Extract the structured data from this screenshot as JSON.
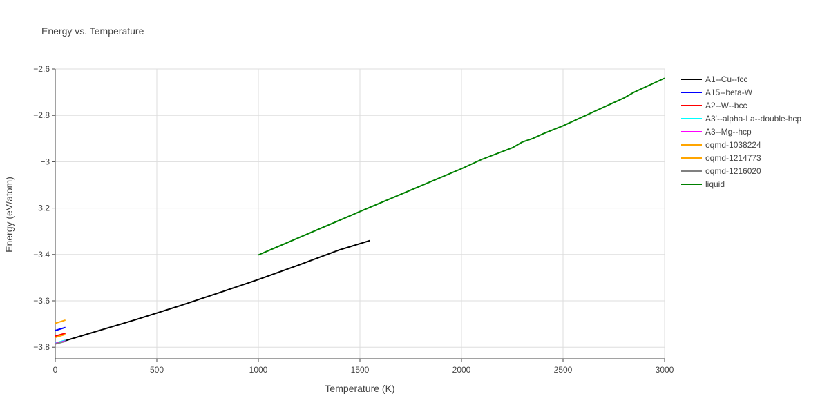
{
  "chart_data": {
    "type": "line",
    "title": "Energy vs. Temperature",
    "xlabel": "Temperature (K)",
    "ylabel": "Energy (eV/atom)",
    "xlim": [
      0,
      3000
    ],
    "ylim": [
      -3.85,
      -2.6
    ],
    "xticks": [
      0,
      500,
      1000,
      1500,
      2000,
      2500,
      3000
    ],
    "yticks": [
      -3.8,
      -3.6,
      -3.4,
      -3.2,
      -3.0,
      -2.8,
      -2.6
    ],
    "ytick_labels": [
      "−3.8",
      "−3.6",
      "−3.4",
      "−3.2",
      "−3",
      "−2.8",
      "−2.6"
    ],
    "grid": true,
    "legend_position": "right",
    "series": [
      {
        "name": "A1--Cu--fcc",
        "color": "#000000",
        "x": [
          0,
          200,
          400,
          600,
          800,
          1000,
          1200,
          1400,
          1550
        ],
        "y": [
          -3.785,
          -3.732,
          -3.68,
          -3.625,
          -3.567,
          -3.508,
          -3.445,
          -3.38,
          -3.34
        ]
      },
      {
        "name": "A15--beta-W",
        "color": "#0000ff",
        "x": [
          0,
          50
        ],
        "y": [
          -3.728,
          -3.715
        ]
      },
      {
        "name": "A2--W--bcc",
        "color": "#ff0000",
        "x": [
          0,
          50
        ],
        "y": [
          -3.752,
          -3.74
        ]
      },
      {
        "name": "A3'--alpha-La--double-hcp",
        "color": "#00ffff",
        "x": [
          0,
          50
        ],
        "y": [
          -3.782,
          -3.77
        ]
      },
      {
        "name": "A3--Mg--hcp",
        "color": "#ff00ff",
        "x": [
          0,
          50
        ],
        "y": [
          -3.784,
          -3.773
        ]
      },
      {
        "name": "oqmd-1038224",
        "color": "#ffa500",
        "x": [
          0,
          50
        ],
        "y": [
          -3.697,
          -3.683
        ]
      },
      {
        "name": "oqmd-1214773",
        "color": "#ffa500",
        "x": [
          0,
          50
        ],
        "y": [
          -3.758,
          -3.745
        ]
      },
      {
        "name": "oqmd-1216020",
        "color": "#808080",
        "x": [
          0,
          50
        ],
        "y": [
          -3.786,
          -3.775
        ]
      },
      {
        "name": "liquid",
        "color": "#008000",
        "x": [
          1000,
          1500,
          2000,
          2100,
          2250,
          2300,
          2350,
          2400,
          2500,
          2800,
          2850,
          3000
        ],
        "y": [
          -3.402,
          -3.215,
          -3.03,
          -2.99,
          -2.94,
          -2.915,
          -2.9,
          -2.88,
          -2.845,
          -2.725,
          -2.7,
          -2.64
        ]
      }
    ]
  }
}
